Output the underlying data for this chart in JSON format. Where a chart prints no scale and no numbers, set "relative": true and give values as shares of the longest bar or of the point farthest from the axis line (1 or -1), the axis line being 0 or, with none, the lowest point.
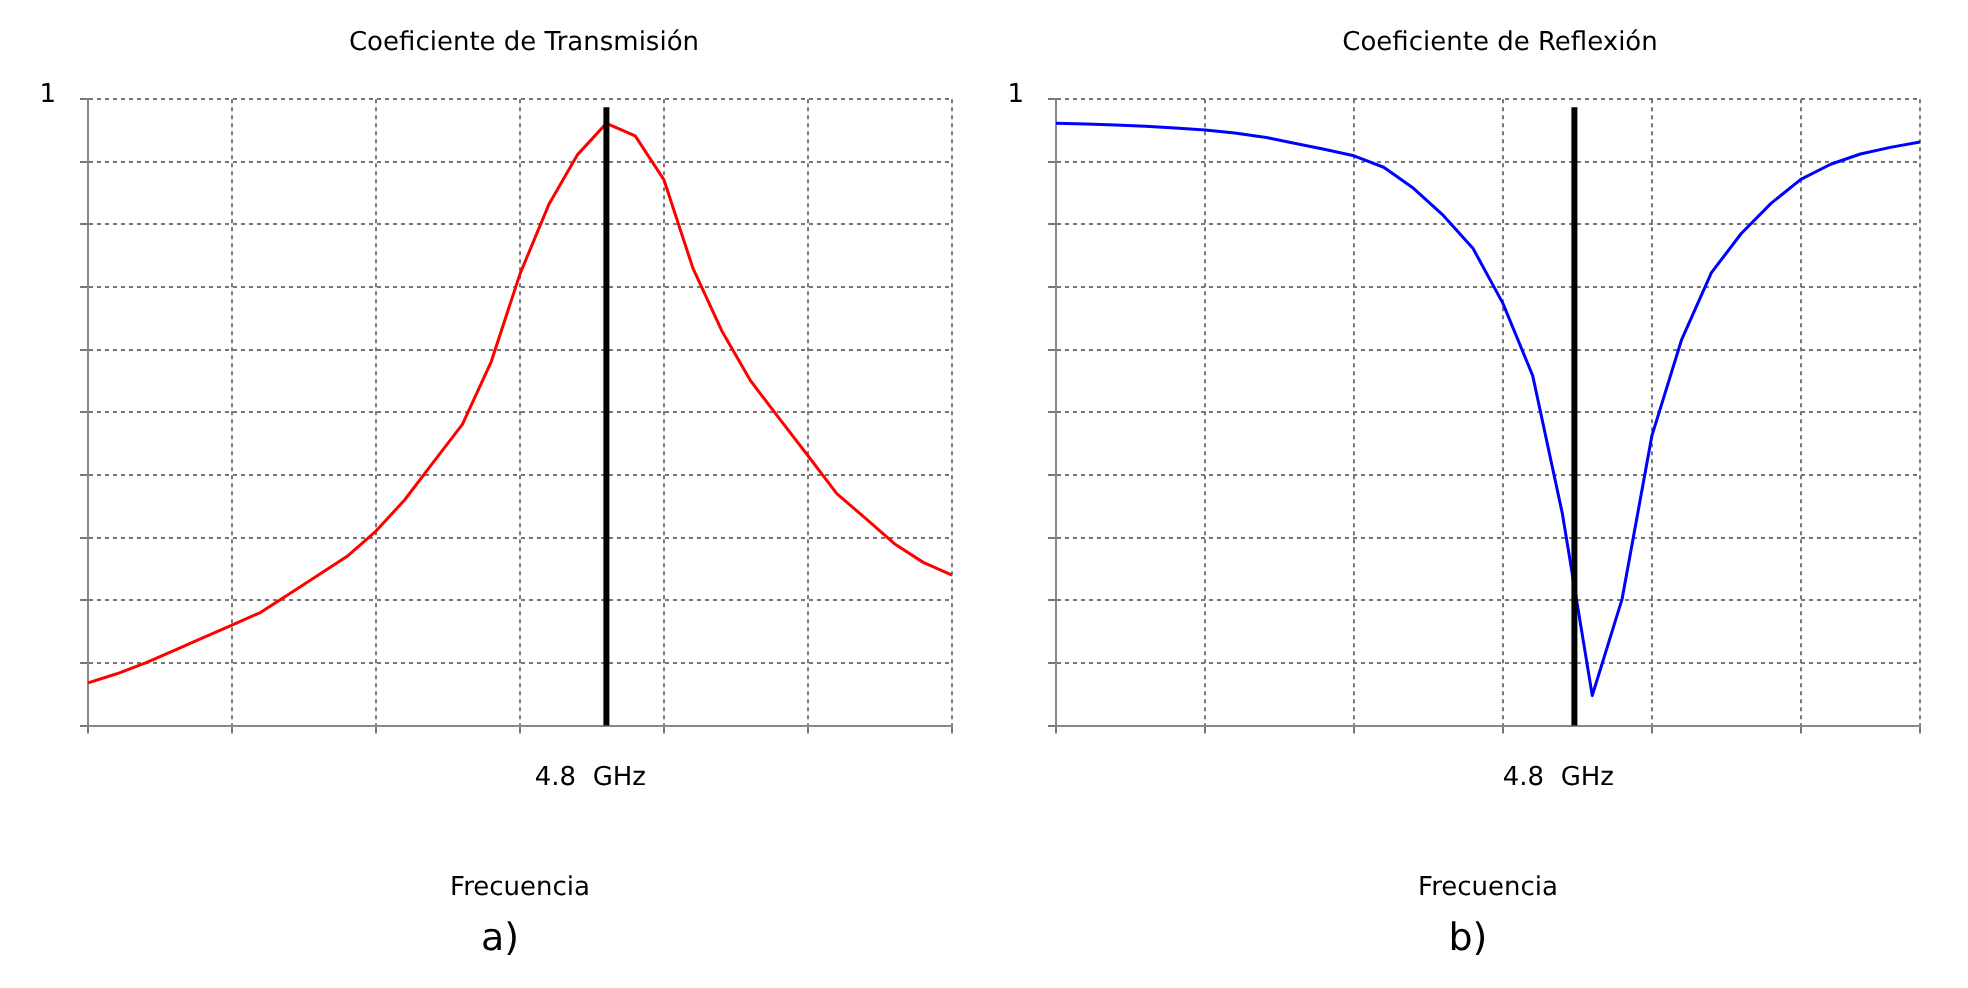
{
  "chart_data": [
    {
      "type": "line",
      "title": "Coeficiente de Transmisión",
      "xlabel": "Frecuencia",
      "annotations": [
        "1",
        "a)"
      ],
      "relative": true,
      "categories": [
        null,
        null,
        null,
        null,
        null,
        null,
        null,
        null,
        null,
        null,
        null,
        null,
        null,
        null,
        null,
        null,
        null,
        null,
        null,
        null,
        null,
        null,
        null,
        null,
        null,
        null,
        null,
        null,
        null,
        null,
        null
      ],
      "series": [
        {
          "color": "#ff0000",
          "values": [
            0.071,
            0.086,
            0.104,
            0.125,
            0.146,
            0.167,
            0.188,
            0.219,
            0.25,
            0.281,
            0.323,
            0.375,
            0.438,
            0.5,
            0.604,
            0.75,
            0.865,
            0.948,
            1,
            0.979,
            0.906,
            0.76,
            0.656,
            0.573,
            0.51,
            0.448,
            0.385,
            0.344,
            0.302,
            0.271,
            0.25
          ]
        }
      ],
      "ref_lines": [
        {
          "axis": "x",
          "label": "4.8  GHz",
          "color": "#000000"
        }
      ],
      "grid": true,
      "legend": false
    },
    {
      "type": "line",
      "title": "Coeficiente de Reflexión",
      "xlabel": "Frecuencia",
      "annotations": [
        "1",
        "b)"
      ],
      "relative": true,
      "categories": [
        null,
        null,
        null,
        null,
        null,
        null,
        null,
        null,
        null,
        null,
        null,
        null,
        null,
        null,
        null,
        null,
        null,
        null,
        null,
        null,
        null,
        null,
        null,
        null,
        null,
        null,
        null,
        null,
        null,
        null
      ],
      "series": [
        {
          "color": "#0000ff",
          "values": [
            1,
            0.999,
            0.997,
            0.995,
            0.992,
            0.989,
            0.984,
            0.977,
            0.967,
            0.957,
            0.946,
            0.927,
            0.892,
            0.847,
            0.792,
            0.701,
            0.581,
            0.351,
            0.05,
            0.21,
            0.481,
            0.641,
            0.752,
            0.817,
            0.867,
            0.907,
            0.932,
            0.949,
            0.96,
            0.969
          ]
        }
      ],
      "ref_lines": [
        {
          "axis": "x",
          "label": "4.8  GHz",
          "color": "#000000"
        }
      ],
      "grid": true,
      "legend": false
    }
  ]
}
